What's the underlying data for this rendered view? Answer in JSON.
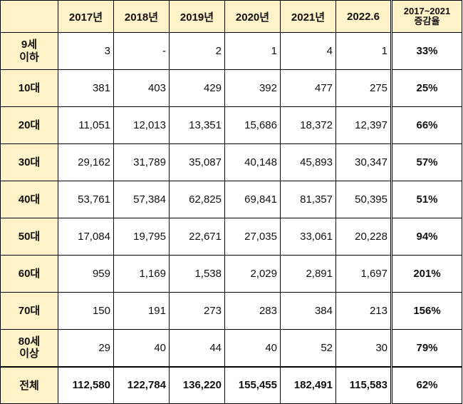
{
  "header": {
    "columns": [
      "2017년",
      "2018년",
      "2019년",
      "2020년",
      "2021년",
      "2022.6"
    ],
    "rate_line1": "2017~2021",
    "rate_line2": "증감율"
  },
  "rows": [
    {
      "age_line1": "9세",
      "age_line2": "이하",
      "values": [
        "3",
        "-",
        "2",
        "1",
        "4",
        "1"
      ],
      "rate": "33%"
    },
    {
      "age_line1": "10대",
      "age_line2": "",
      "values": [
        "381",
        "403",
        "429",
        "392",
        "477",
        "275"
      ],
      "rate": "25%"
    },
    {
      "age_line1": "20대",
      "age_line2": "",
      "values": [
        "11,051",
        "12,013",
        "13,351",
        "15,686",
        "18,372",
        "12,397"
      ],
      "rate": "66%"
    },
    {
      "age_line1": "30대",
      "age_line2": "",
      "values": [
        "29,162",
        "31,789",
        "35,087",
        "40,148",
        "45,893",
        "30,347"
      ],
      "rate": "57%"
    },
    {
      "age_line1": "40대",
      "age_line2": "",
      "values": [
        "53,761",
        "57,384",
        "62,825",
        "69,841",
        "81,357",
        "50,395"
      ],
      "rate": "51%"
    },
    {
      "age_line1": "50대",
      "age_line2": "",
      "values": [
        "17,084",
        "19,795",
        "22,671",
        "27,035",
        "33,061",
        "20,228"
      ],
      "rate": "94%"
    },
    {
      "age_line1": "60대",
      "age_line2": "",
      "values": [
        "959",
        "1,169",
        "1,538",
        "2,029",
        "2,891",
        "1,697"
      ],
      "rate": "201%"
    },
    {
      "age_line1": "70대",
      "age_line2": "",
      "values": [
        "150",
        "191",
        "273",
        "283",
        "384",
        "213"
      ],
      "rate": "156%"
    },
    {
      "age_line1": "80세",
      "age_line2": "이상",
      "values": [
        "29",
        "40",
        "44",
        "40",
        "52",
        "30"
      ],
      "rate": "79%"
    }
  ],
  "total": {
    "label": "전체",
    "values": [
      "112,580",
      "122,784",
      "136,220",
      "155,455",
      "182,491",
      "115,583"
    ],
    "rate": "62%"
  },
  "colors": {
    "header_fill": "#fdf2c8",
    "border": "#000000"
  }
}
